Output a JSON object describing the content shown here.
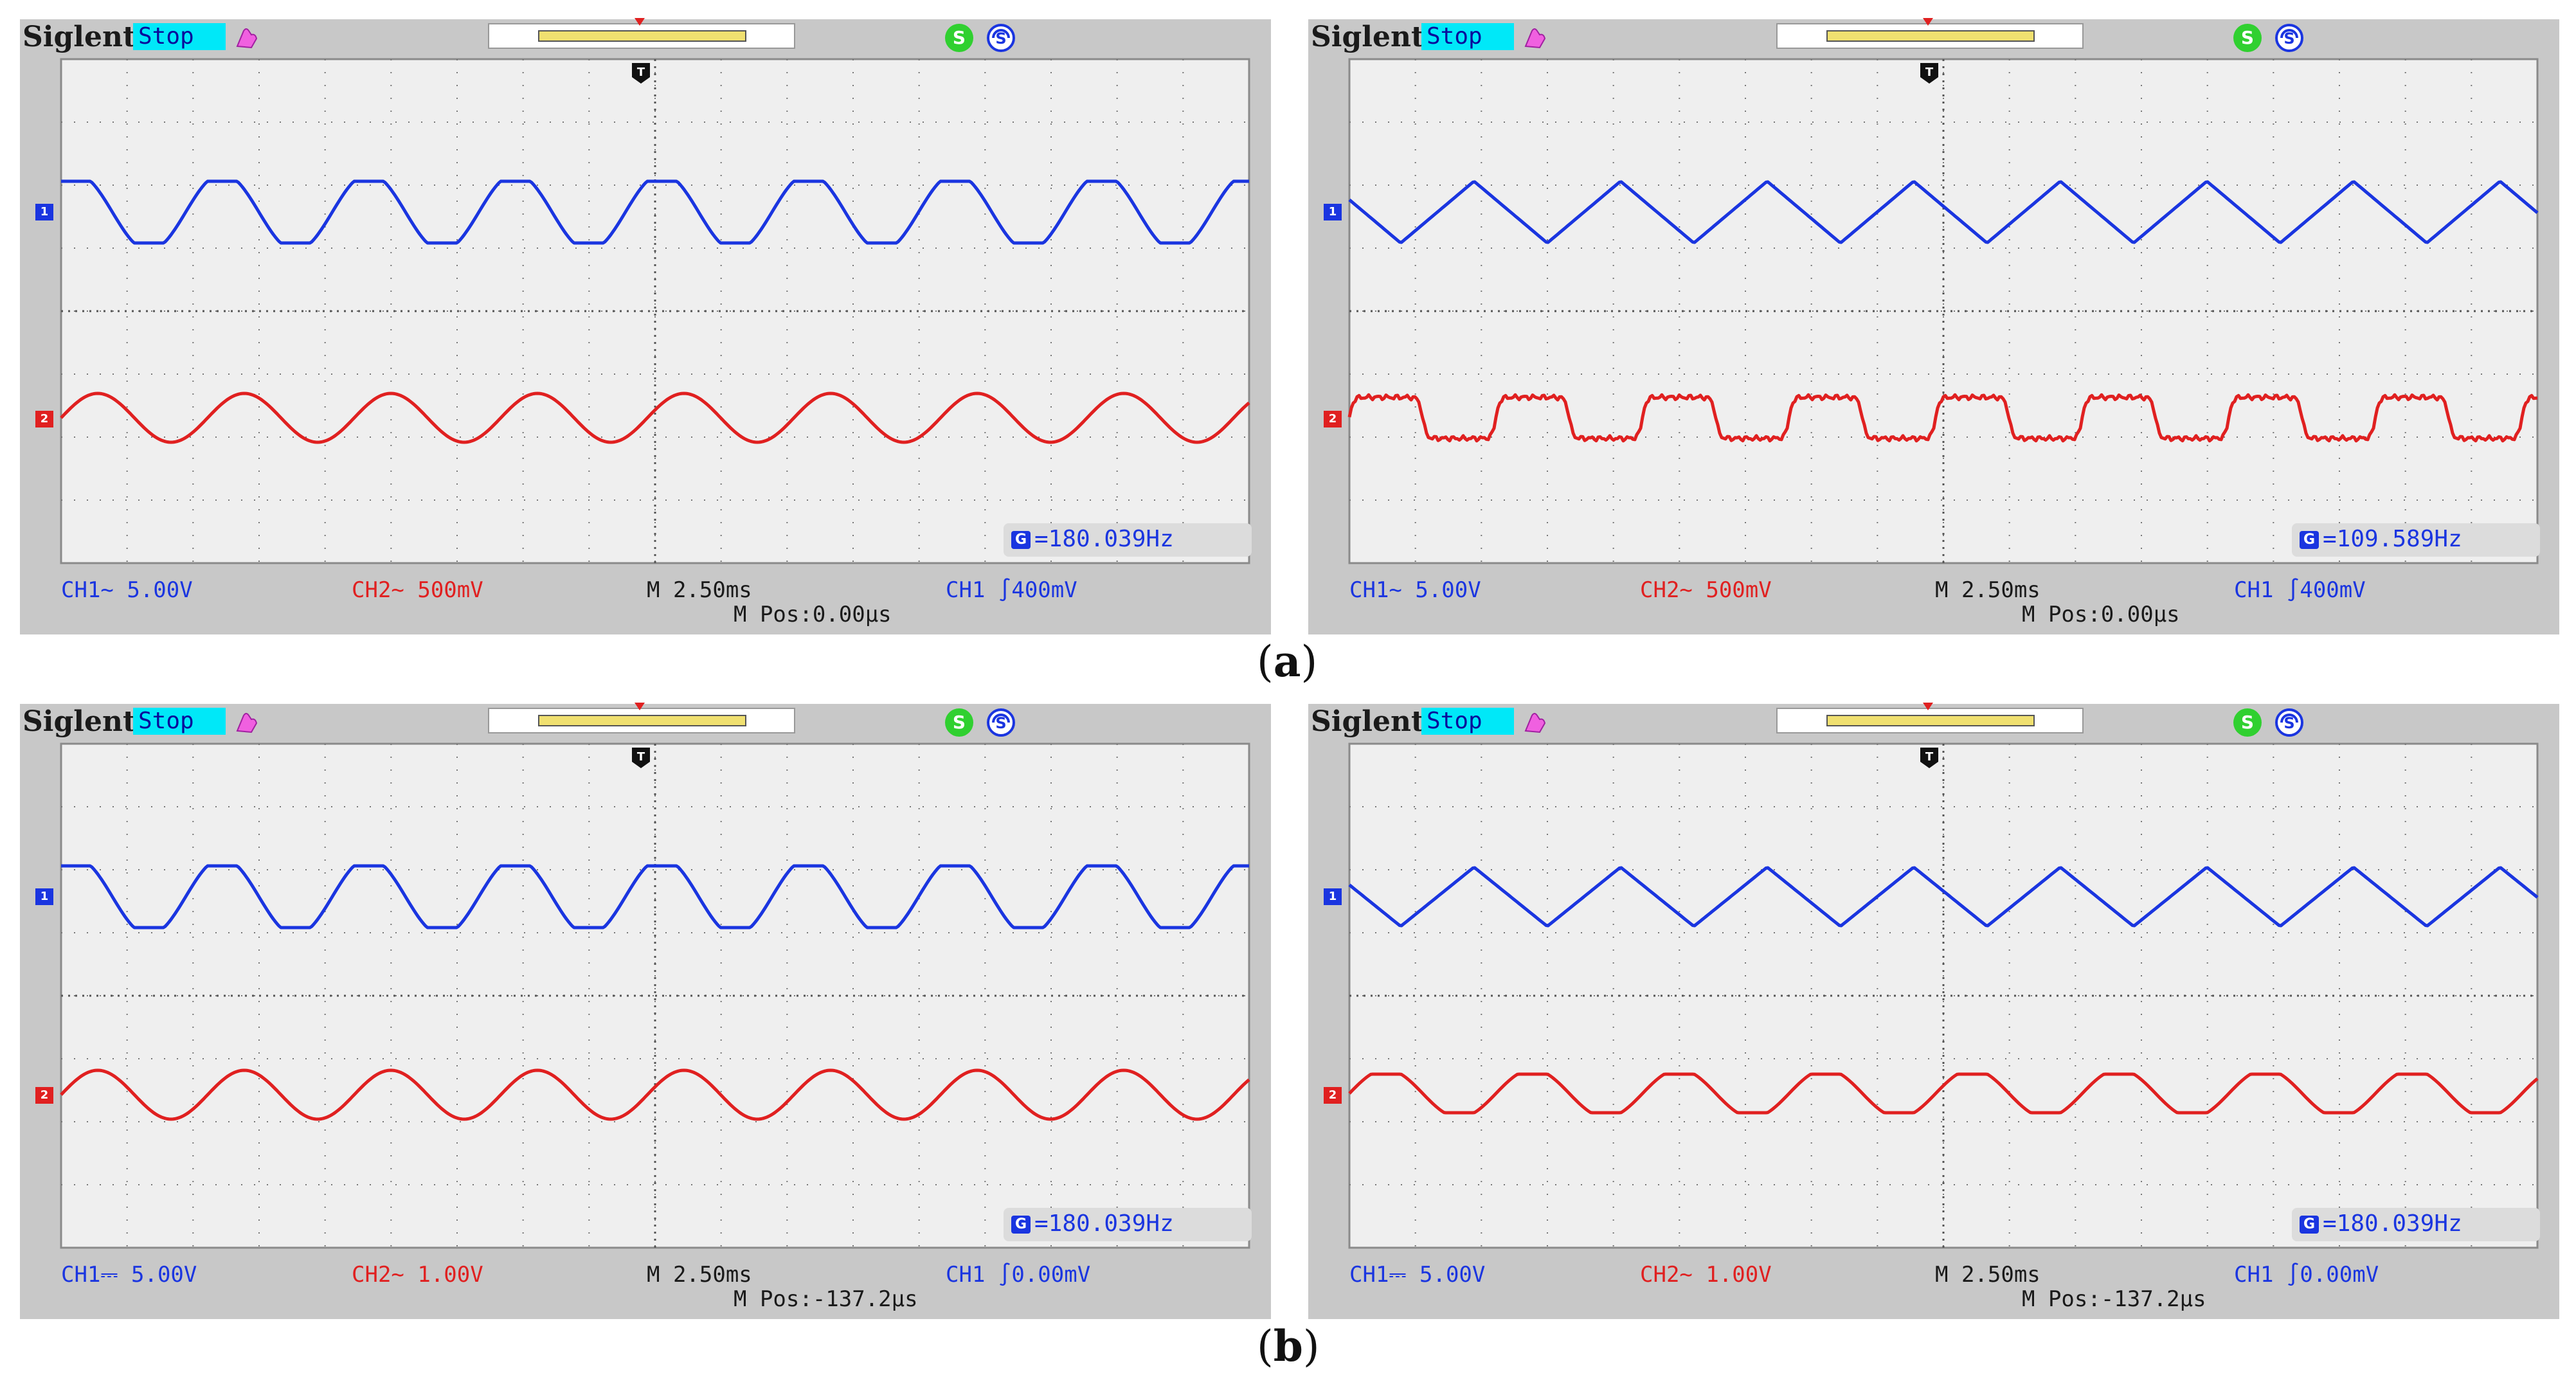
{
  "figure": {
    "captions": {
      "a": "a",
      "b": "b"
    }
  },
  "colors": {
    "ch1": "#1a35e0",
    "ch2": "#e02020",
    "stop_bg": "#00e8f8"
  },
  "screens": [
    {
      "id": "a-left",
      "brand": "Siglent",
      "status": "Stop",
      "ch1_marker": "1",
      "ch2_marker": "2",
      "freq_icon": "G",
      "freq": "=180.039Hz",
      "ch1_setting": "CH1∼ 5.00V",
      "ch2_setting": "CH2∼ 500mV",
      "timebase": "M 2.50ms",
      "trigger": "CH1 ∫400mV",
      "mpos": "M Pos:0.00μs",
      "ch1_wave": "trapezoid",
      "ch2_wave": "sine"
    },
    {
      "id": "a-right",
      "brand": "Siglent",
      "status": "Stop",
      "ch1_marker": "1",
      "ch2_marker": "2",
      "freq_icon": "G",
      "freq": "=109.589Hz",
      "ch1_setting": "CH1∼ 5.00V",
      "ch2_setting": "CH2∼ 500mV",
      "timebase": "M 2.50ms",
      "trigger": "CH1 ∫400mV",
      "mpos": "M Pos:0.00μs",
      "ch1_wave": "triangle",
      "ch2_wave": "square-noisy"
    },
    {
      "id": "b-left",
      "brand": "Siglent",
      "status": "Stop",
      "ch1_marker": "1",
      "ch2_marker": "2",
      "freq_icon": "G",
      "freq": "=180.039Hz",
      "ch1_setting": "CH1⎓ 5.00V",
      "ch2_setting": "CH2∼ 1.00V",
      "timebase": "M 2.50ms",
      "trigger": "CH1 ∫0.00mV",
      "mpos": "M Pos:-137.2μs",
      "ch1_wave": "trapezoid",
      "ch2_wave": "sine"
    },
    {
      "id": "b-right",
      "brand": "Siglent",
      "status": "Stop",
      "ch1_marker": "1",
      "ch2_marker": "2",
      "freq_icon": "G",
      "freq": "=180.039Hz",
      "ch1_setting": "CH1⎓ 5.00V",
      "ch2_setting": "CH2∼ 1.00V",
      "timebase": "M 2.50ms",
      "trigger": "CH1 ∫0.00mV",
      "mpos": "M Pos:-137.2μs",
      "ch1_wave": "triangle",
      "ch2_wave": "trapezoid"
    }
  ]
}
